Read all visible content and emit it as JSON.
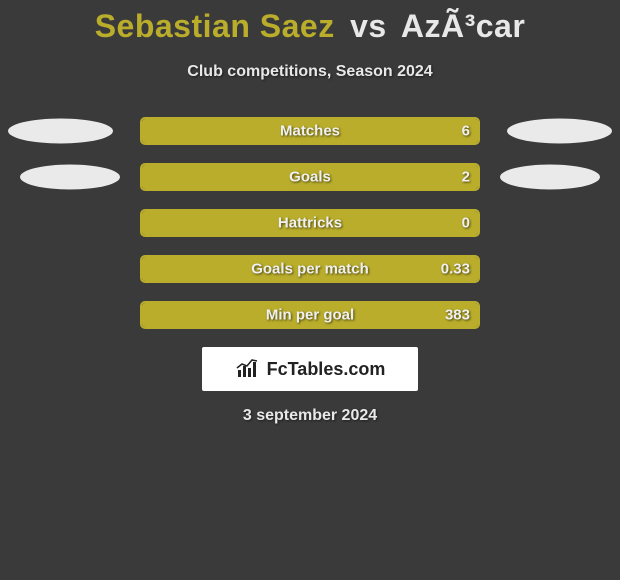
{
  "title": {
    "player1": "Sebastian Saez",
    "vs": "vs",
    "player2": "AzÃ³car",
    "player1_color": "#b9ad2b",
    "player2_color": "#e8e8e8"
  },
  "subtitle": "Club competitions, Season 2024",
  "background_color": "#3a3a3a",
  "bar_color": "#b9ad2b",
  "ellipse_color": "#eaeaea",
  "text_color": "#f0f0f0",
  "rows": [
    {
      "label": "Matches",
      "value": "6",
      "fill_pct": 100,
      "left_ellipse": 1,
      "right_ellipse": 1
    },
    {
      "label": "Goals",
      "value": "2",
      "fill_pct": 100,
      "left_ellipse": 2,
      "right_ellipse": 2
    },
    {
      "label": "Hattricks",
      "value": "0",
      "fill_pct": 100,
      "left_ellipse": 0,
      "right_ellipse": 0
    },
    {
      "label": "Goals per match",
      "value": "0.33",
      "fill_pct": 100,
      "left_ellipse": 0,
      "right_ellipse": 0
    },
    {
      "label": "Min per goal",
      "value": "383",
      "fill_pct": 100,
      "left_ellipse": 0,
      "right_ellipse": 0
    }
  ],
  "brand": "FcTables.com",
  "date": "3 september 2024"
}
